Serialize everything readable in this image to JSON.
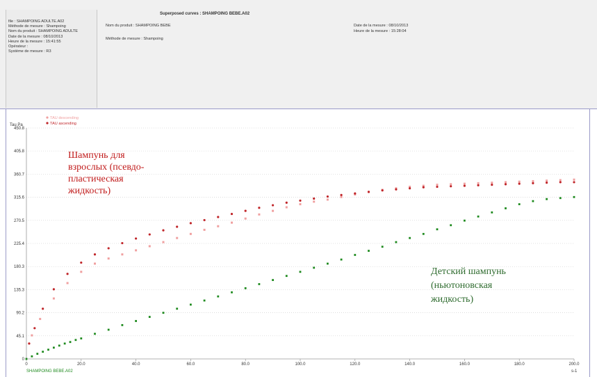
{
  "header": {
    "left_info": [
      "file : SHAMPOING ADULTE.A02",
      "Méthode de mesure : Shampoing",
      "Nom du produit : SHAMPOING ADULTE",
      "Date de la mesure : 08/10/2013",
      "Heure de la mesure : 15:41:55",
      "Opérateur :",
      "Système de mesure : R3"
    ],
    "title": "Superposed curves : SHAMPOING BEBE.A02",
    "product": "Nom du produit : SHAMPOING BEBE",
    "method": "Méthode de mesure : Shampoing",
    "date": "Date de la mesure : 08/10/2013",
    "time": "Heure de la mesure : 15:28:04"
  },
  "chart_data": {
    "type": "scatter",
    "ylabel": "Tau Pa",
    "xunit": "s-1",
    "footer_label": "SHAMPOING BEBE.A02",
    "xlim": [
      0,
      200
    ],
    "ylim": [
      0,
      450.8
    ],
    "yticks": [
      "0",
      "45.1",
      "90.2",
      "135.3",
      "180.3",
      "225.4",
      "270.5",
      "315.6",
      "360.7",
      "405.8",
      "450.8"
    ],
    "xticks": [
      "0",
      "20.0",
      "40.0",
      "60.0",
      "80.0",
      "100.0",
      "120.0",
      "140.0",
      "160.0",
      "180.0",
      "200.0"
    ],
    "legend": [
      "TAU descending",
      "TAU ascending"
    ],
    "colors": {
      "descending": "#f0a0a0",
      "ascending": "#c0262a",
      "baby": "#1e8a1e"
    },
    "series": [
      {
        "name": "TAU descending",
        "curve": "adult",
        "points": [
          [
            2,
            46
          ],
          [
            5,
            78
          ],
          [
            10,
            118
          ],
          [
            15,
            148
          ],
          [
            20,
            170
          ],
          [
            25,
            186
          ],
          [
            30,
            196
          ],
          [
            35,
            204
          ],
          [
            40,
            212
          ],
          [
            45,
            220
          ],
          [
            50,
            228
          ],
          [
            55,
            236
          ],
          [
            60,
            244
          ],
          [
            65,
            252
          ],
          [
            70,
            259
          ],
          [
            75,
            266
          ],
          [
            80,
            274
          ],
          [
            85,
            282
          ],
          [
            90,
            289
          ],
          [
            95,
            296
          ],
          [
            100,
            302
          ],
          [
            105,
            307
          ],
          [
            110,
            311
          ],
          [
            115,
            316
          ],
          [
            120,
            321
          ],
          [
            125,
            326
          ],
          [
            130,
            330
          ],
          [
            135,
            333
          ],
          [
            140,
            336
          ],
          [
            145,
            338
          ],
          [
            150,
            340
          ],
          [
            155,
            341
          ],
          [
            160,
            342
          ],
          [
            165,
            343
          ],
          [
            170,
            344
          ],
          [
            175,
            345
          ],
          [
            180,
            346
          ],
          [
            185,
            347
          ],
          [
            190,
            348
          ],
          [
            195,
            349
          ],
          [
            200,
            350
          ]
        ]
      },
      {
        "name": "TAU ascending",
        "curve": "adult",
        "points": [
          [
            1,
            30
          ],
          [
            3,
            60
          ],
          [
            6,
            98
          ],
          [
            10,
            136
          ],
          [
            15,
            166
          ],
          [
            20,
            188
          ],
          [
            25,
            204
          ],
          [
            30,
            216
          ],
          [
            35,
            226
          ],
          [
            40,
            235
          ],
          [
            45,
            243
          ],
          [
            50,
            251
          ],
          [
            55,
            258
          ],
          [
            60,
            265
          ],
          [
            65,
            271
          ],
          [
            70,
            277
          ],
          [
            75,
            283
          ],
          [
            80,
            289
          ],
          [
            85,
            295
          ],
          [
            90,
            300
          ],
          [
            95,
            305
          ],
          [
            100,
            309
          ],
          [
            105,
            313
          ],
          [
            110,
            317
          ],
          [
            115,
            320
          ],
          [
            120,
            323
          ],
          [
            125,
            326
          ],
          [
            130,
            329
          ],
          [
            135,
            331
          ],
          [
            140,
            333
          ],
          [
            145,
            335
          ],
          [
            150,
            336
          ],
          [
            155,
            337
          ],
          [
            160,
            338
          ],
          [
            165,
            339
          ],
          [
            170,
            340
          ],
          [
            175,
            341
          ],
          [
            180,
            342
          ],
          [
            185,
            343
          ],
          [
            190,
            344
          ],
          [
            195,
            345
          ],
          [
            200,
            345
          ]
        ]
      },
      {
        "curve": "baby",
        "points": [
          [
            0,
            0
          ],
          [
            2,
            5
          ],
          [
            4,
            10
          ],
          [
            6,
            14
          ],
          [
            8,
            18
          ],
          [
            10,
            22
          ],
          [
            12,
            26
          ],
          [
            14,
            30
          ],
          [
            16,
            33
          ],
          [
            18,
            37
          ],
          [
            20,
            40
          ],
          [
            25,
            49
          ],
          [
            30,
            57
          ],
          [
            35,
            66
          ],
          [
            40,
            74
          ],
          [
            45,
            82
          ],
          [
            50,
            90
          ],
          [
            55,
            98
          ],
          [
            60,
            106
          ],
          [
            65,
            114
          ],
          [
            70,
            122
          ],
          [
            75,
            130
          ],
          [
            80,
            138
          ],
          [
            85,
            146
          ],
          [
            90,
            154
          ],
          [
            95,
            162
          ],
          [
            100,
            170
          ],
          [
            105,
            178
          ],
          [
            110,
            186
          ],
          [
            115,
            194
          ],
          [
            120,
            203
          ],
          [
            125,
            211
          ],
          [
            130,
            219
          ],
          [
            135,
            228
          ],
          [
            140,
            236
          ],
          [
            145,
            244
          ],
          [
            150,
            253
          ],
          [
            155,
            261
          ],
          [
            160,
            270
          ],
          [
            165,
            278
          ],
          [
            170,
            286
          ],
          [
            175,
            294
          ],
          [
            180,
            302
          ],
          [
            185,
            308
          ],
          [
            190,
            312
          ],
          [
            195,
            314
          ],
          [
            200,
            316
          ]
        ]
      }
    ],
    "annotations": {
      "adult": [
        "Шампунь для",
        "взрослых (псевдо-",
        "пластическая",
        "жидкость)"
      ],
      "baby": [
        "Детский шампунь",
        "(ньютоновская",
        "жидкость)"
      ]
    }
  }
}
